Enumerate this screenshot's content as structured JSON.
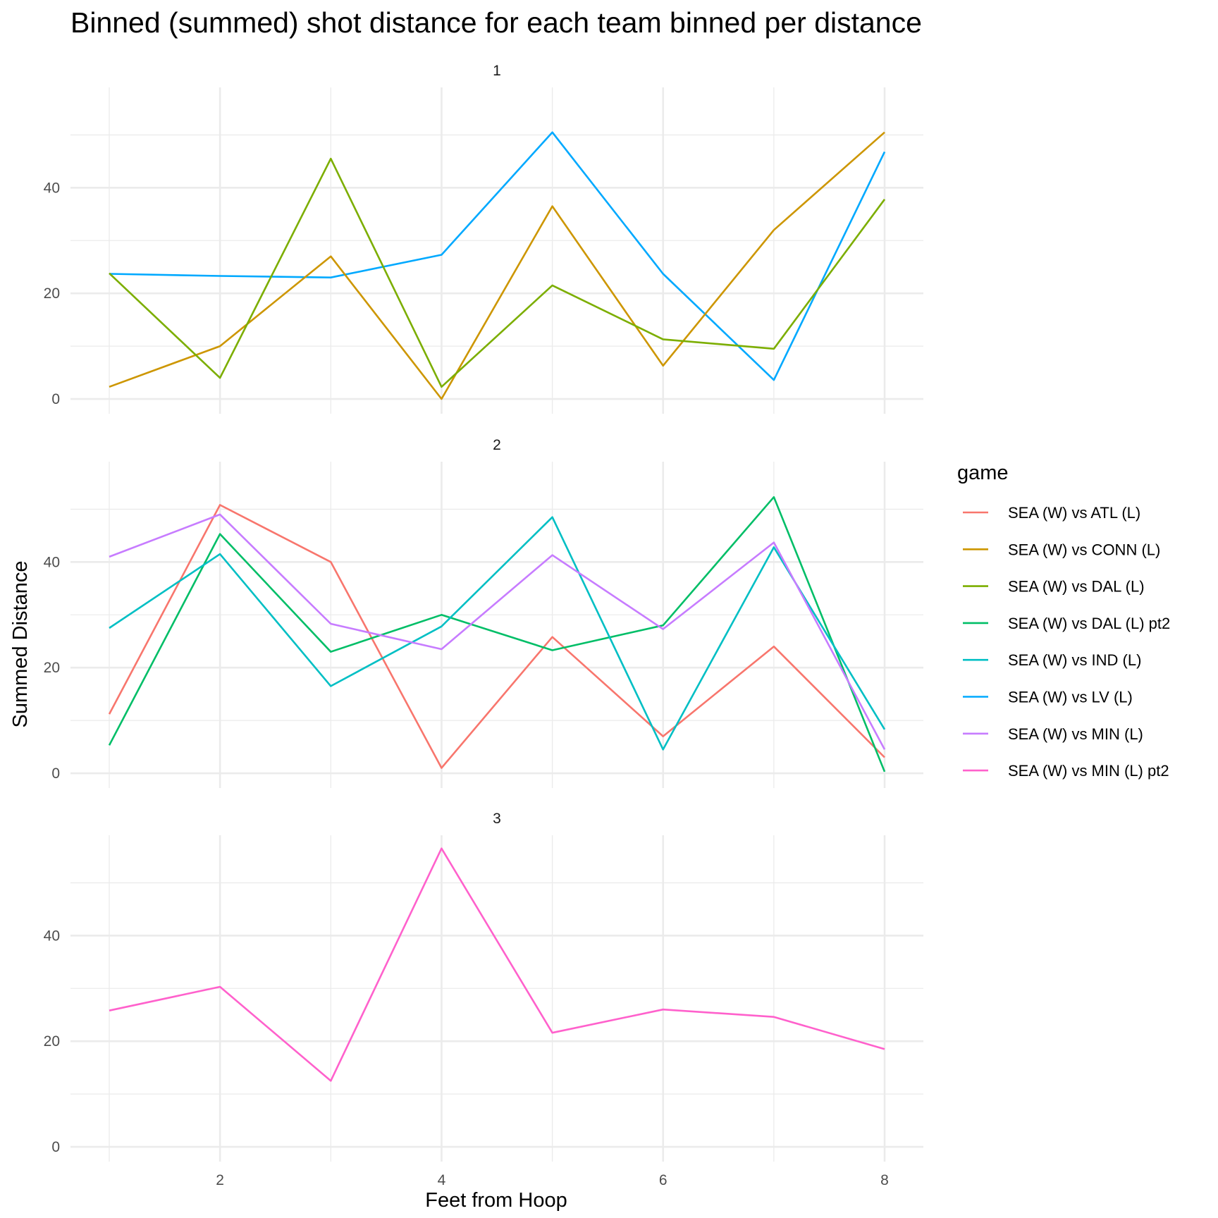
{
  "chart_data": {
    "type": "line",
    "title": "Binned (summed) shot distance for each team binned per distance",
    "xlabel": "Feet from Hoop",
    "ylabel": "Summed Distance",
    "x": [
      1,
      2,
      3,
      4,
      5,
      6,
      7,
      8
    ],
    "x_ticks": [
      "2",
      "4",
      "6",
      "8"
    ],
    "y_ticks": [
      "0",
      "20",
      "40"
    ],
    "xlim": [
      0.65,
      8.35
    ],
    "ylim": [
      -2.8,
      59
    ],
    "grid": true,
    "legend": {
      "title": "game",
      "position": "right",
      "entries": [
        {
          "name": "SEA (W) vs ATL (L)",
          "color": "#F8766D"
        },
        {
          "name": "SEA (W) vs CONN (L)",
          "color": "#CD9600"
        },
        {
          "name": "SEA (W) vs DAL (L)",
          "color": "#7CAE00"
        },
        {
          "name": "SEA (W) vs DAL (L) pt2",
          "color": "#00BE67"
        },
        {
          "name": "SEA (W) vs IND (L)",
          "color": "#00BFC4"
        },
        {
          "name": "SEA (W) vs LV (L)",
          "color": "#00A9FF"
        },
        {
          "name": "SEA (W) vs MIN (L)",
          "color": "#C77CFF"
        },
        {
          "name": "SEA (W) vs MIN (L) pt2",
          "color": "#FF61CC"
        }
      ]
    },
    "panels": [
      {
        "label": "1",
        "series": [
          {
            "name": "SEA (W) vs LV (L)",
            "color": "#00A9FF",
            "values": [
              23.7,
              23.3,
              23.0,
              27.3,
              50.5,
              23.7,
              3.6,
              46.8
            ]
          },
          {
            "name": "SEA (W) vs CONN (L)",
            "color": "#CD9600",
            "values": [
              2.3,
              10.0,
              27.0,
              0.0,
              36.5,
              6.3,
              32.0,
              50.5
            ]
          },
          {
            "name": "SEA (W) vs DAL (L)",
            "color": "#7CAE00",
            "values": [
              23.8,
              4.0,
              45.5,
              2.3,
              21.5,
              11.3,
              9.5,
              37.8
            ]
          }
        ]
      },
      {
        "label": "2",
        "series": [
          {
            "name": "SEA (W) vs ATL (L)",
            "color": "#F8766D",
            "values": [
              11.2,
              50.8,
              40.0,
              1.0,
              25.8,
              7.0,
              24.0,
              3.0
            ]
          },
          {
            "name": "SEA (W) vs DAL (L) pt2",
            "color": "#00BE67",
            "values": [
              5.3,
              45.3,
              23.0,
              30.0,
              23.3,
              28.0,
              52.3,
              0.3
            ]
          },
          {
            "name": "SEA (W) vs IND (L)",
            "color": "#00BFC4",
            "values": [
              27.5,
              41.5,
              16.5,
              27.8,
              48.5,
              4.5,
              42.8,
              8.3
            ]
          },
          {
            "name": "SEA (W) vs MIN (L)",
            "color": "#C77CFF",
            "values": [
              41.0,
              49.0,
              28.3,
              23.5,
              41.3,
              27.3,
              43.7,
              4.5
            ]
          }
        ]
      },
      {
        "label": "3",
        "series": [
          {
            "name": "SEA (W) vs MIN (L) pt2",
            "color": "#FF61CC",
            "values": [
              25.8,
              30.3,
              12.5,
              56.5,
              21.6,
              26.0,
              24.6,
              18.5
            ]
          }
        ]
      }
    ]
  }
}
